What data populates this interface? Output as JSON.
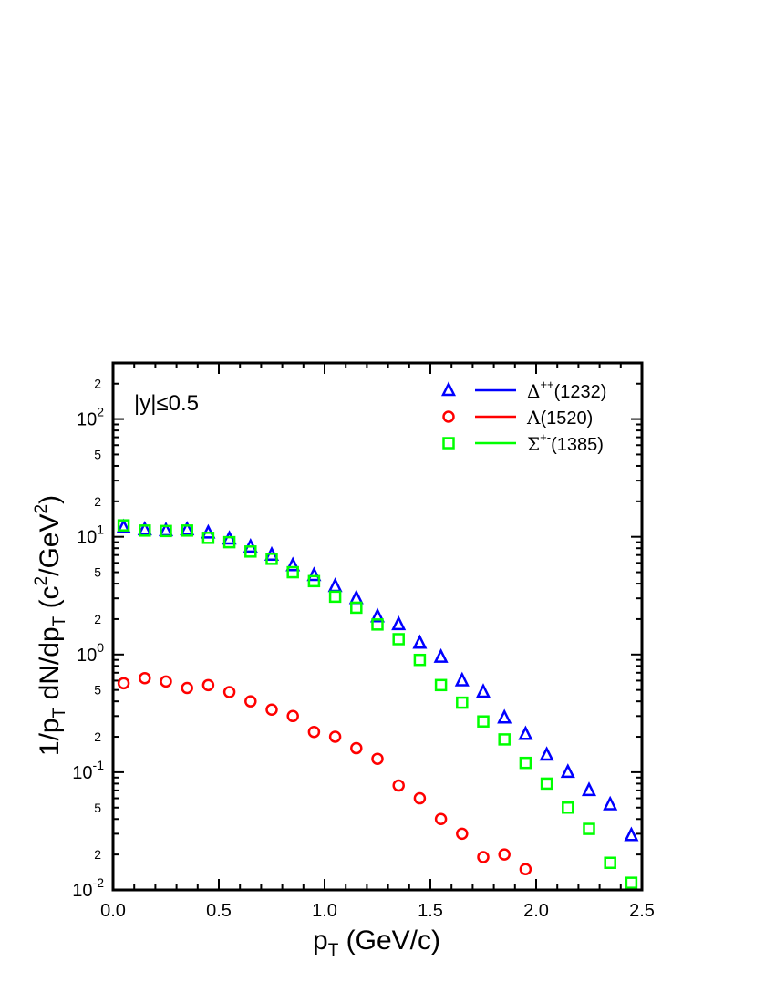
{
  "chart_data": {
    "type": "scatter",
    "title": "",
    "xlabel": {
      "main": "p",
      "sub": "T",
      "rest": " (GeV/c)"
    },
    "ylabel": {
      "p1": "1/p",
      "s1": "T",
      "p2": " dN/dp",
      "s2": "T",
      "p3": " (c",
      "sup1": "2",
      "p4": "/GeV",
      "sup2": "2",
      "p5": ")"
    },
    "xlim": [
      0.0,
      2.5
    ],
    "ylim": [
      0.01,
      300
    ],
    "yscale": "log",
    "grid": false,
    "legend_position": "top-right",
    "annotation": "|y|≤0.5",
    "x_ticks": [
      "0.0",
      "0.5",
      "1.0",
      "1.5",
      "2.0",
      "2.5"
    ],
    "y_decade_ticks": [
      {
        "value": 0.01,
        "base": "10",
        "exp": "-2"
      },
      {
        "value": 0.1,
        "base": "10",
        "exp": "-1"
      },
      {
        "value": 1,
        "base": "10",
        "exp": "0"
      },
      {
        "value": 10,
        "base": "10",
        "exp": "1"
      },
      {
        "value": 100,
        "base": "10",
        "exp": "2"
      }
    ],
    "y_minor_labels": [
      {
        "value": 0.02,
        "label": "2"
      },
      {
        "value": 0.05,
        "label": "5"
      },
      {
        "value": 0.2,
        "label": "2"
      },
      {
        "value": 0.5,
        "label": "5"
      },
      {
        "value": 2,
        "label": "2"
      },
      {
        "value": 5,
        "label": "5"
      },
      {
        "value": 20,
        "label": "2"
      },
      {
        "value": 50,
        "label": "5"
      },
      {
        "value": 200,
        "label": "2"
      }
    ],
    "series": [
      {
        "name": {
          "base": "Δ",
          "sup": "++",
          "rest": "(1232)"
        },
        "marker": "triangle",
        "color": "#0000ff",
        "x": [
          0.05,
          0.15,
          0.25,
          0.35,
          0.45,
          0.55,
          0.65,
          0.75,
          0.85,
          0.95,
          1.05,
          1.15,
          1.25,
          1.35,
          1.45,
          1.55,
          1.65,
          1.75,
          1.85,
          1.95,
          2.05,
          2.15,
          2.25,
          2.35,
          2.45
        ],
        "y": [
          12.0,
          11.5,
          11.3,
          11.5,
          10.8,
          9.6,
          8.2,
          7.0,
          5.7,
          4.7,
          3.8,
          3.0,
          2.1,
          1.8,
          1.25,
          0.95,
          0.6,
          0.48,
          0.29,
          0.21,
          0.14,
          0.1,
          0.07,
          0.053,
          0.029
        ]
      },
      {
        "name": {
          "base": "Λ",
          "sup": "",
          "rest": "(1520)"
        },
        "marker": "circle",
        "color": "#ff0000",
        "x": [
          0.05,
          0.15,
          0.25,
          0.35,
          0.45,
          0.55,
          0.65,
          0.75,
          0.85,
          0.95,
          1.05,
          1.15,
          1.25,
          1.35,
          1.45,
          1.55,
          1.65,
          1.75,
          1.85,
          1.95
        ],
        "y": [
          0.57,
          0.63,
          0.59,
          0.52,
          0.55,
          0.48,
          0.4,
          0.34,
          0.3,
          0.22,
          0.2,
          0.16,
          0.13,
          0.077,
          0.06,
          0.04,
          0.03,
          0.019,
          0.02,
          0.015
        ]
      },
      {
        "name": {
          "base": "Σ",
          "sup": "+-",
          "rest": "(1385)"
        },
        "marker": "square",
        "color": "#00ff00",
        "x": [
          0.05,
          0.15,
          0.25,
          0.35,
          0.45,
          0.55,
          0.65,
          0.75,
          0.85,
          0.95,
          1.05,
          1.15,
          1.25,
          1.35,
          1.45,
          1.55,
          1.65,
          1.75,
          1.85,
          1.95,
          2.05,
          2.15,
          2.25,
          2.35,
          2.45
        ],
        "y": [
          12.5,
          11.3,
          11.2,
          11.3,
          9.8,
          9.0,
          7.5,
          6.5,
          5.0,
          4.2,
          3.1,
          2.5,
          1.8,
          1.35,
          0.9,
          0.55,
          0.39,
          0.27,
          0.19,
          0.12,
          0.08,
          0.05,
          0.033,
          0.017,
          0.0115
        ]
      }
    ]
  }
}
